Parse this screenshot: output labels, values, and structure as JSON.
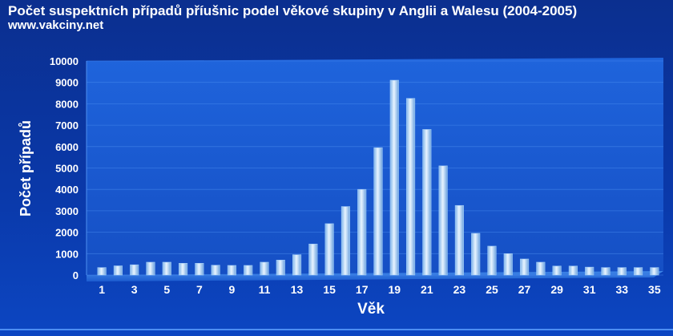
{
  "title": "Počet suspektních případů příušnic podel věkové skupiny v Anglii a Walesu (2004-2005)",
  "subtitle": "www.vakciny.net",
  "chart_data": {
    "type": "bar",
    "title": "Počet suspektních případů příušnic podel věkové skupiny v Anglii a Walesu (2004-2005)",
    "xlabel": "Věk",
    "ylabel": "Počet případů",
    "categories": [
      "1",
      "2",
      "3",
      "4",
      "5",
      "6",
      "7",
      "8",
      "9",
      "10",
      "11",
      "12",
      "13",
      "14",
      "15",
      "16",
      "17",
      "18",
      "19",
      "20",
      "21",
      "22",
      "23",
      "24",
      "25",
      "26",
      "27",
      "28",
      "29",
      "30",
      "31",
      "32",
      "33",
      "34",
      "35"
    ],
    "x_tick_labels": [
      "1",
      "3",
      "5",
      "7",
      "9",
      "11",
      "13",
      "15",
      "17",
      "19",
      "21",
      "23",
      "25",
      "27",
      "29",
      "31",
      "33",
      "35"
    ],
    "values": [
      350,
      430,
      480,
      600,
      600,
      550,
      550,
      460,
      450,
      450,
      600,
      700,
      950,
      1450,
      2400,
      3200,
      4000,
      5950,
      9100,
      8250,
      6800,
      5100,
      3250,
      1950,
      1350,
      1000,
      750,
      600,
      420,
      420,
      370,
      350,
      350,
      350,
      350
    ],
    "ylim": [
      0,
      10000
    ],
    "yticks": [
      0,
      1000,
      2000,
      3000,
      4000,
      5000,
      6000,
      7000,
      8000,
      9000,
      10000
    ],
    "grid": true,
    "legend": "none"
  },
  "colors": {
    "background": "#0a38a8",
    "plot_area": "#1a5ad0",
    "bar": "#bfe0ff",
    "text": "#ffffff"
  }
}
